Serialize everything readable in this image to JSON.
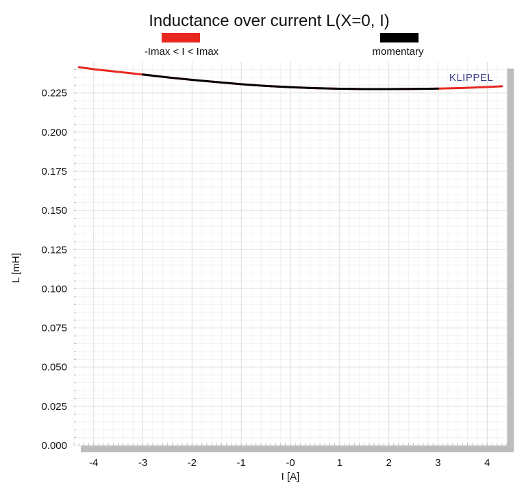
{
  "chart_data": {
    "type": "line",
    "title": "Inductance over current L(X=0, I)",
    "xlabel": "I [A]",
    "ylabel": "L [mH]",
    "brand": "KLIPPEL",
    "xlim": [
      -4.4,
      4.4
    ],
    "ylim": [
      0.0,
      0.245
    ],
    "x_ticks": [
      -4,
      -3,
      -2,
      -1,
      0,
      1,
      2,
      3,
      4
    ],
    "x_tick_labels": [
      "-4",
      "-3",
      "-2",
      "-1",
      "-0",
      "1",
      "2",
      "3",
      "4"
    ],
    "y_ticks": [
      0.0,
      0.025,
      0.05,
      0.075,
      0.1,
      0.125,
      0.15,
      0.175,
      0.2,
      0.225
    ],
    "y_tick_labels": [
      "0.000",
      "0.025",
      "0.050",
      "0.075",
      "0.100",
      "0.125",
      "0.150",
      "0.175",
      "0.200",
      "0.225"
    ],
    "grid": true,
    "legend_position": "top",
    "series": [
      {
        "name": "-Imax < I < Imax",
        "color": "#e8281e",
        "x": [
          -4.3,
          -4.0,
          -3.5,
          -3.0,
          -2.5,
          -2.0,
          -1.5,
          -1.0,
          -0.5,
          0.0,
          0.5,
          1.0,
          1.5,
          2.0,
          2.5,
          3.0,
          3.5,
          4.0,
          4.3
        ],
        "values": [
          0.2415,
          0.2402,
          0.2385,
          0.2368,
          0.235,
          0.2334,
          0.232,
          0.2306,
          0.2295,
          0.2287,
          0.2281,
          0.2277,
          0.2275,
          0.2275,
          0.2276,
          0.2278,
          0.2282,
          0.2288,
          0.2293
        ]
      },
      {
        "name": "momentary",
        "color": "#000000",
        "x": [
          -3.0,
          -2.5,
          -2.0,
          -1.5,
          -1.0,
          -0.5,
          0.0,
          0.5,
          1.0,
          1.5,
          2.0,
          2.5,
          3.0
        ],
        "values": [
          0.2368,
          0.235,
          0.2334,
          0.232,
          0.2306,
          0.2295,
          0.2287,
          0.2281,
          0.2277,
          0.2275,
          0.2275,
          0.2276,
          0.2278
        ]
      }
    ]
  }
}
